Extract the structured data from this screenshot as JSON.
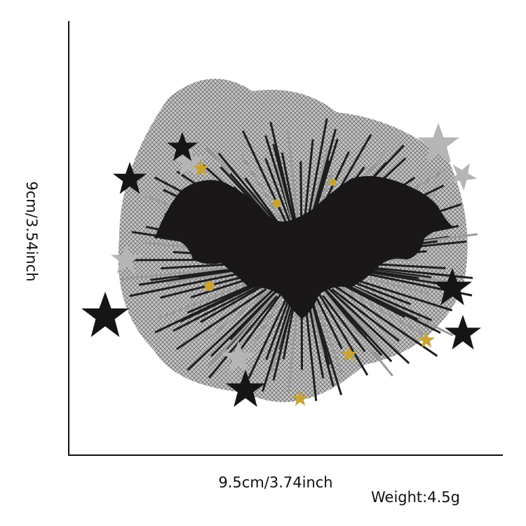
{
  "dimensions": {
    "height_label": "9cm/3.54inch",
    "width_label": "9.5cm/3.74inch",
    "weight_label": "Weight:4.5g"
  },
  "product": {
    "description_icon": "bat-hair-clip-with-tulle-and-stars",
    "colors": {
      "bat": "#1a1718",
      "tulle": "#8a8a8a",
      "fringe": "#222222",
      "silver_star": "#b8b8b8",
      "gold_star": "#c9a431"
    }
  }
}
